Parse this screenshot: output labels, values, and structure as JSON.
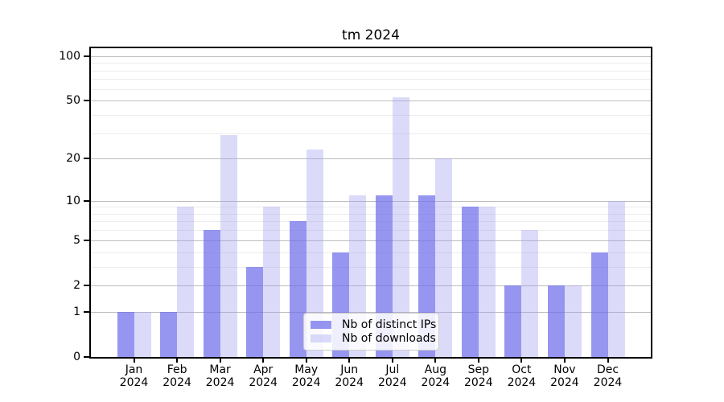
{
  "chart_data": {
    "type": "bar",
    "title": "tm 2024",
    "x_categories": [
      "Jan",
      "Feb",
      "Mar",
      "Apr",
      "May",
      "Jun",
      "Jul",
      "Aug",
      "Sep",
      "Oct",
      "Nov",
      "Dec"
    ],
    "x_year": "2024",
    "series": [
      {
        "name": "Nb of distinct IPs",
        "color": "#6e6eeb",
        "opacity": 0.72,
        "values": [
          1,
          1,
          6,
          3,
          7,
          4,
          11,
          11,
          9,
          2,
          2,
          4
        ]
      },
      {
        "name": "Nb of downloads",
        "color": "#a0a0f0",
        "opacity": 0.38,
        "values": [
          1,
          9,
          29,
          9,
          23,
          11,
          53,
          20,
          9,
          6,
          2,
          10
        ]
      }
    ],
    "y_axis": {
      "scale": "log10(value+1)",
      "ticks": [
        0,
        1,
        2,
        5,
        10,
        20,
        50,
        100
      ],
      "minor_gridlines": [
        3,
        4,
        6,
        7,
        8,
        9,
        30,
        40,
        60,
        70,
        80,
        90
      ],
      "max": 113
    },
    "grid": "on",
    "legend": {
      "position": "lower-center"
    }
  },
  "colors": {
    "background": "#ffffff",
    "axis": "#000000",
    "grid_major": "#bdbdbd",
    "grid_minor": "#ececec",
    "legend_border": "#cccccc"
  }
}
